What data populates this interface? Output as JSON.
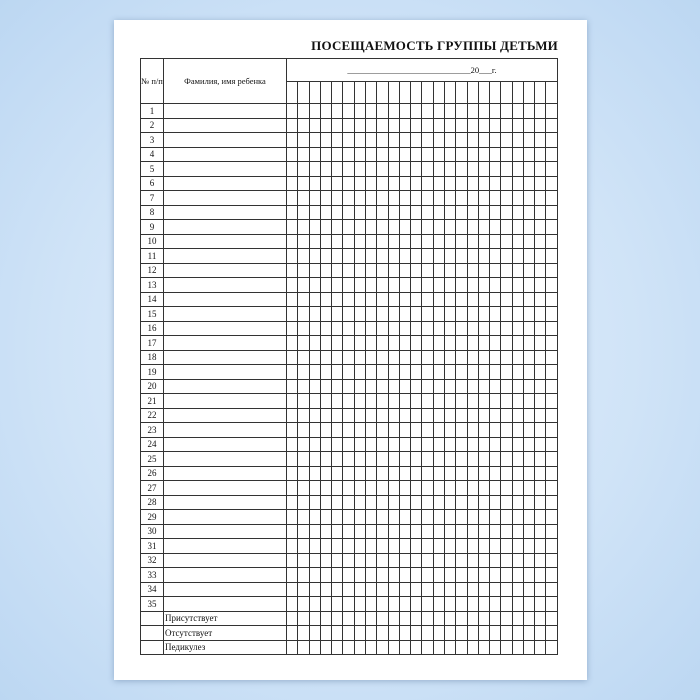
{
  "document": {
    "title": "ПОСЕЩАЕМОСТЬ ГРУППЫ ДЕТЬМИ",
    "columns": {
      "number": "№ п/п",
      "name": "Фамилия, имя ребенка",
      "date": "_____________________________20___г."
    },
    "day_columns": 24,
    "rows": [
      "1",
      "2",
      "3",
      "4",
      "5",
      "6",
      "7",
      "8",
      "9",
      "10",
      "11",
      "12",
      "13",
      "14",
      "15",
      "16",
      "17",
      "18",
      "19",
      "20",
      "21",
      "22",
      "23",
      "24",
      "25",
      "26",
      "27",
      "28",
      "29",
      "30",
      "31",
      "32",
      "33",
      "34",
      "35"
    ],
    "summary_rows": [
      "Присутствует",
      "Отсутствует",
      "Педикулез"
    ]
  }
}
